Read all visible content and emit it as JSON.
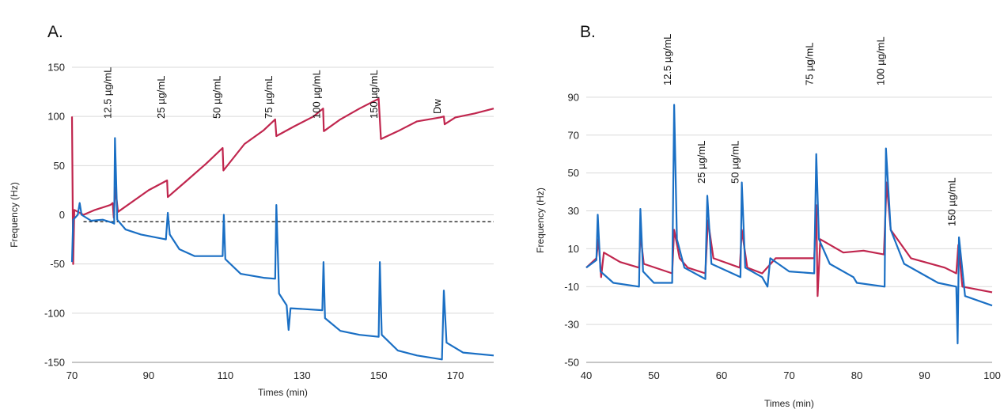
{
  "chart_data": [
    {
      "type": "line",
      "panel_label": "A.",
      "xlabel": "Times (min)",
      "ylabel": "Frequency (Hz)",
      "xlim": [
        70,
        180
      ],
      "ylim": [
        -150,
        150
      ],
      "x_ticks": [
        70,
        90,
        110,
        130,
        150,
        170
      ],
      "y_ticks": [
        150,
        100,
        50,
        0,
        -50,
        -100,
        -150
      ],
      "grid": "horizontal",
      "reference_line": {
        "y": -7,
        "x_from": 73,
        "x_to": 180,
        "style": "dashed"
      },
      "annotations": [
        {
          "text": "12.5 µg/mL",
          "x": 81
        },
        {
          "text": "25 µg/mL",
          "x": 95
        },
        {
          "text": "50 µg/mL",
          "x": 109.5
        },
        {
          "text": "75 µg/mL",
          "x": 123
        },
        {
          "text": "100 µg/mL",
          "x": 135.5
        },
        {
          "text": "150 µg/mL",
          "x": 150.5
        },
        {
          "text": "Dw",
          "x": 167
        }
      ],
      "series": [
        {
          "color": "#c0264e",
          "points": [
            [
              70,
              100
            ],
            [
              70.3,
              -50
            ],
            [
              70.6,
              5
            ],
            [
              73,
              0
            ],
            [
              76,
              5
            ],
            [
              80,
              10
            ],
            [
              80.6,
              12
            ],
            [
              80.9,
              -3
            ],
            [
              81.3,
              28
            ],
            [
              82,
              3
            ],
            [
              90,
              25
            ],
            [
              94.8,
              35
            ],
            [
              95,
              18
            ],
            [
              100,
              35
            ],
            [
              105,
              52
            ],
            [
              109.3,
              68
            ],
            [
              109.5,
              45
            ],
            [
              115,
              72
            ],
            [
              120,
              86
            ],
            [
              123,
              97
            ],
            [
              123.3,
              80
            ],
            [
              128,
              90
            ],
            [
              133,
              100
            ],
            [
              135.5,
              108
            ],
            [
              135.7,
              85
            ],
            [
              140,
              97
            ],
            [
              145,
              108
            ],
            [
              150,
              118
            ],
            [
              150.6,
              77
            ],
            [
              155,
              85
            ],
            [
              160,
              95
            ],
            [
              166,
              99
            ],
            [
              167,
              100
            ],
            [
              167.2,
              92
            ],
            [
              170,
              99
            ],
            [
              175,
              103
            ],
            [
              180,
              108
            ]
          ]
        },
        {
          "color": "#1a6fc4",
          "points": [
            [
              70,
              -48
            ],
            [
              70.3,
              -5
            ],
            [
              71.5,
              0
            ],
            [
              72,
              12
            ],
            [
              72.5,
              0
            ],
            [
              75,
              -6
            ],
            [
              78,
              -5
            ],
            [
              80.5,
              -8
            ],
            [
              81,
              -9
            ],
            [
              81.2,
              78
            ],
            [
              81.8,
              -5
            ],
            [
              84,
              -15
            ],
            [
              88,
              -20
            ],
            [
              94.5,
              -25
            ],
            [
              95,
              2
            ],
            [
              95.5,
              -20
            ],
            [
              98,
              -35
            ],
            [
              102,
              -42
            ],
            [
              109.3,
              -42
            ],
            [
              109.6,
              0
            ],
            [
              110,
              -45
            ],
            [
              114,
              -60
            ],
            [
              120,
              -64
            ],
            [
              123,
              -65
            ],
            [
              123.3,
              10
            ],
            [
              124,
              -80
            ],
            [
              126,
              -92
            ],
            [
              126.5,
              -117
            ],
            [
              127,
              -95
            ],
            [
              135.3,
              -97
            ],
            [
              135.6,
              -48
            ],
            [
              136,
              -105
            ],
            [
              140,
              -118
            ],
            [
              145,
              -122
            ],
            [
              150,
              -124
            ],
            [
              150.3,
              -48
            ],
            [
              150.8,
              -122
            ],
            [
              155,
              -138
            ],
            [
              160,
              -143
            ],
            [
              166.5,
              -147
            ],
            [
              167,
              -77
            ],
            [
              167.7,
              -130
            ],
            [
              172,
              -140
            ],
            [
              180,
              -143
            ]
          ]
        }
      ]
    },
    {
      "type": "line",
      "panel_label": "B.",
      "xlabel": "Times (min)",
      "ylabel": "Frequency (Hz)",
      "xlim": [
        40,
        100
      ],
      "ylim": [
        -50,
        100
      ],
      "x_ticks": [
        40,
        50,
        60,
        70,
        80,
        90,
        100
      ],
      "y_ticks": [
        90,
        70,
        50,
        30,
        10,
        -10,
        -30,
        -50
      ],
      "grid": "horizontal",
      "annotations": [
        {
          "text": "12.5 µg/mL",
          "x": 53
        },
        {
          "text": "25 µg/mL",
          "x": 58
        },
        {
          "text": "50 µg/mL",
          "x": 63
        },
        {
          "text": "75 µg/mL",
          "x": 74
        },
        {
          "text": "100 µg/mL",
          "x": 84.5
        },
        {
          "text": "150 µg/mL",
          "x": 95
        }
      ],
      "series": [
        {
          "color": "#c0264e",
          "points": [
            [
              40,
              0
            ],
            [
              41.5,
              5
            ],
            [
              41.8,
              15
            ],
            [
              42.2,
              -5
            ],
            [
              42.6,
              8
            ],
            [
              45,
              3
            ],
            [
              47.8,
              0
            ],
            [
              48,
              18
            ],
            [
              48.5,
              2
            ],
            [
              52.7,
              -3
            ],
            [
              53,
              20
            ],
            [
              53.8,
              5
            ],
            [
              55,
              0
            ],
            [
              57.6,
              -3
            ],
            [
              58,
              25
            ],
            [
              58.8,
              5
            ],
            [
              62.7,
              0
            ],
            [
              63,
              20
            ],
            [
              63.8,
              0
            ],
            [
              66,
              -3
            ],
            [
              68,
              5
            ],
            [
              73.7,
              5
            ],
            [
              74,
              33
            ],
            [
              74.2,
              -15
            ],
            [
              74.6,
              15
            ],
            [
              78,
              8
            ],
            [
              81,
              9
            ],
            [
              84,
              7
            ],
            [
              84.4,
              45
            ],
            [
              85,
              20
            ],
            [
              88,
              5
            ],
            [
              93,
              0
            ],
            [
              94.7,
              -3
            ],
            [
              95,
              12
            ],
            [
              95.6,
              -10
            ],
            [
              100,
              -13
            ]
          ]
        },
        {
          "color": "#1a6fc4",
          "points": [
            [
              40,
              0
            ],
            [
              41.5,
              4
            ],
            [
              41.7,
              28
            ],
            [
              42.1,
              -2
            ],
            [
              44,
              -8
            ],
            [
              47.8,
              -10
            ],
            [
              48,
              31
            ],
            [
              48.4,
              -2
            ],
            [
              50,
              -8
            ],
            [
              52.7,
              -8
            ],
            [
              53,
              86
            ],
            [
              53.4,
              15
            ],
            [
              54.5,
              0
            ],
            [
              57.6,
              -6
            ],
            [
              57.9,
              38
            ],
            [
              58.5,
              2
            ],
            [
              62.8,
              -5
            ],
            [
              63,
              45
            ],
            [
              63.5,
              0
            ],
            [
              66,
              -5
            ],
            [
              66.8,
              -10
            ],
            [
              67.2,
              5
            ],
            [
              70,
              -2
            ],
            [
              73.7,
              -3
            ],
            [
              74,
              60
            ],
            [
              74.4,
              15
            ],
            [
              76,
              2
            ],
            [
              79.5,
              -5
            ],
            [
              80,
              -8
            ],
            [
              84.1,
              -10
            ],
            [
              84.3,
              63
            ],
            [
              85,
              20
            ],
            [
              87,
              2
            ],
            [
              92,
              -8
            ],
            [
              94.7,
              -10
            ],
            [
              94.9,
              -40
            ],
            [
              95.1,
              16
            ],
            [
              96,
              -15
            ],
            [
              100,
              -20
            ]
          ]
        }
      ]
    }
  ]
}
